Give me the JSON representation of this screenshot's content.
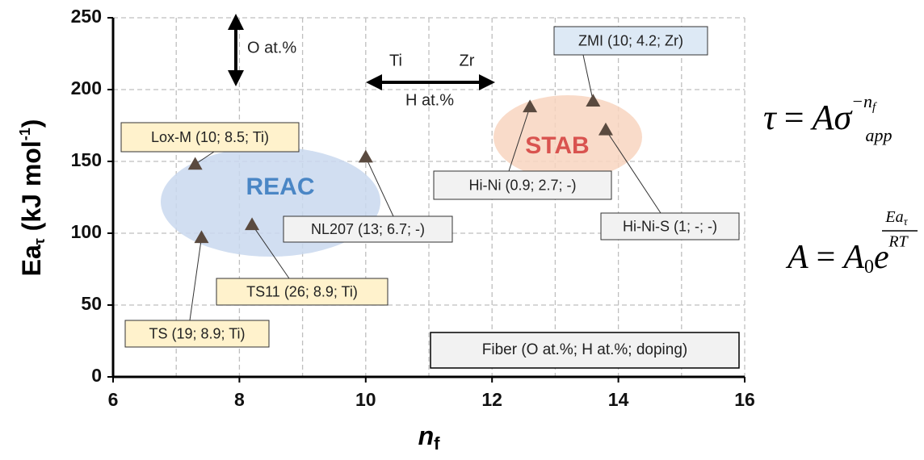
{
  "chart_data": {
    "type": "scatter",
    "x_label": {
      "main": "n",
      "sub": "f"
    },
    "y_label": {
      "main": "Ea",
      "sub": "τ",
      "rest": " (kJ mol",
      "sup": "-1",
      "end": ")"
    },
    "xlim": [
      6,
      16
    ],
    "ylim": [
      0,
      250
    ],
    "xticks": [
      6,
      8,
      10,
      12,
      14,
      16
    ],
    "yticks": [
      0,
      50,
      100,
      150,
      200,
      250
    ],
    "x_minor_grid": [
      7,
      9,
      11,
      13,
      15
    ],
    "grid": true,
    "series": [
      {
        "color": "#5a4a3f",
        "x": [
          7.3,
          7.4,
          8.2,
          10,
          12.6,
          13.6,
          13.8
        ],
        "values": [
          148,
          97,
          106,
          153,
          188,
          192,
          172
        ],
        "labels": [
          "Lox-M (10; 8.5; Ti)",
          "TS (19; 8.9; Ti)",
          "TS11 (26; 8.9; Ti)",
          "NL207 (13; 6.7; -)",
          "Hi-Ni (0.9; 2.7; -)",
          "ZMI (10; 4.2; Zr)",
          "Hi-Ni-S (1; -; -)"
        ],
        "label_colors": [
          "#fff2cc",
          "#fff2cc",
          "#fff2cc",
          "#f2f2f2",
          "#f2f2f2",
          "#dde9f5",
          "#f2f2f2"
        ]
      }
    ],
    "groups": [
      {
        "label": "REAC",
        "color": "#4a86c5",
        "fill": "#c9d8ee"
      },
      {
        "label": "STAB",
        "color": "#d9534f",
        "fill": "#f8d5bf"
      }
    ],
    "legend_text": "Fiber (O at.%; H at.%; doping)",
    "arrow_annotations": {
      "vertical": "O at.%",
      "left": "Ti",
      "right": "Zr",
      "horizontal": "H at.%"
    },
    "equations": [
      {
        "lhs": "τ",
        "eq": "=",
        "A": "A",
        "sigma": "σ",
        "sub": "app",
        "sup": "−n",
        "sup_sub": "f"
      },
      {
        "lhs": "A",
        "eq": "=",
        "A": "A",
        "A_sub": "0",
        "e": "e",
        "num": "Ea",
        "num_sub": "τ",
        "den": "RT"
      }
    ]
  }
}
